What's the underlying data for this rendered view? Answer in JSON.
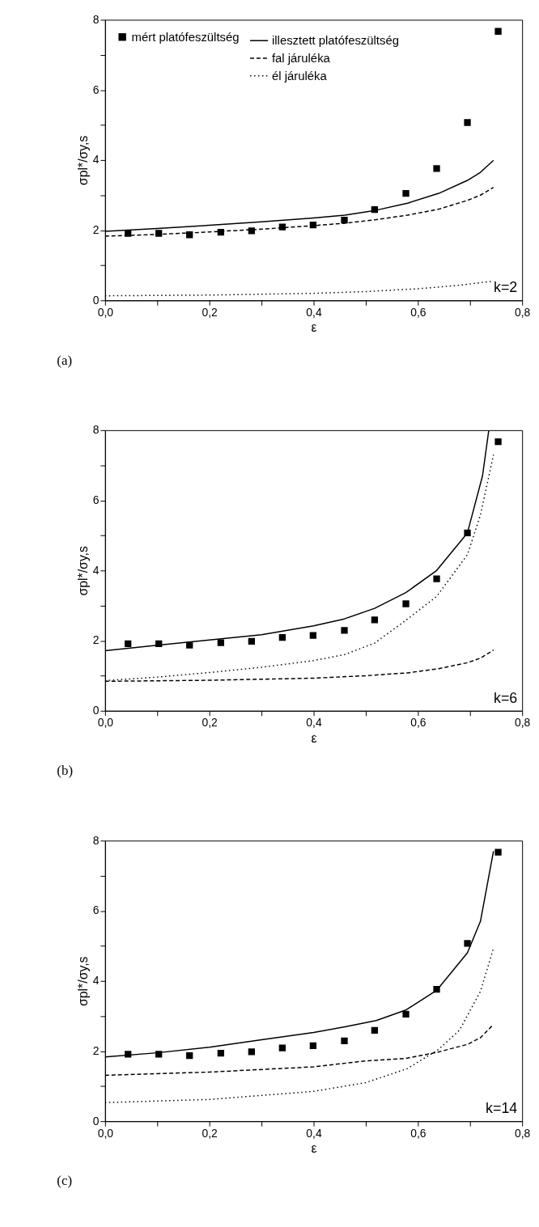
{
  "chart_data": [
    {
      "type": "line",
      "xlabel": "ε",
      "ylabel": "σpl*/σy,s",
      "xlim": [
        0,
        0.8
      ],
      "ylim": [
        0,
        8
      ],
      "legend": "top left",
      "grid": false,
      "xticks": [
        {
          "value": 0,
          "label": "0,0"
        },
        {
          "value": 0.1,
          "label": null
        },
        {
          "value": 0.2,
          "label": "0,2"
        },
        {
          "value": 0.3,
          "label": null
        },
        {
          "value": 0.4,
          "label": "0,4"
        },
        {
          "value": 0.5,
          "label": null
        },
        {
          "value": 0.6,
          "label": "0,6"
        },
        {
          "value": 0.7,
          "label": null
        },
        {
          "value": 0.8,
          "label": "0,8"
        }
      ],
      "yticks": [
        0,
        {
          "value": 1,
          "label": null
        },
        2,
        {
          "value": 3,
          "label": null
        },
        4,
        {
          "value": 5,
          "label": null
        },
        6,
        {
          "value": 7,
          "label": null
        },
        8
      ],
      "annotations": [
        "k=2",
        "(a)"
      ],
      "series": [
        {
          "name": "mért platófeszültség",
          "type": "scatter",
          "marker": "square",
          "color": "#000000",
          "x": [
            0.044,
            0.103,
            0.162,
            0.222,
            0.281,
            0.34,
            0.399,
            0.459,
            0.517,
            0.577,
            0.636,
            0.695,
            0.754
          ],
          "values": [
            1.91,
            1.91,
            1.87,
            1.94,
            1.98,
            2.09,
            2.15,
            2.29,
            2.59,
            3.05,
            3.76,
            5.07,
            7.67
          ]
        },
        {
          "name": "illesztett platófeszültség",
          "type": "line",
          "line_style": "solid",
          "color": "#000000",
          "x": [
            0,
            0.1,
            0.2,
            0.3,
            0.4,
            0.46,
            0.52,
            0.58,
            0.64,
            0.695,
            0.72,
            0.745
          ],
          "values": [
            1.97,
            2.05,
            2.14,
            2.24,
            2.35,
            2.43,
            2.57,
            2.77,
            3.05,
            3.42,
            3.65,
            3.99
          ]
        },
        {
          "name": "fal járuléka",
          "type": "line",
          "line_style": "dashed",
          "color": "#000000",
          "x": [
            0,
            0.1,
            0.2,
            0.3,
            0.4,
            0.46,
            0.52,
            0.58,
            0.64,
            0.695,
            0.72,
            0.745
          ],
          "values": [
            1.83,
            1.88,
            1.95,
            2.03,
            2.13,
            2.2,
            2.3,
            2.43,
            2.6,
            2.85,
            3.0,
            3.22
          ]
        },
        {
          "name": "él járuléka",
          "type": "line",
          "line_style": "dotted",
          "color": "#000000",
          "x": [
            0,
            0.2,
            0.4,
            0.5,
            0.6,
            0.68,
            0.745
          ],
          "values": [
            0.13,
            0.15,
            0.2,
            0.25,
            0.33,
            0.43,
            0.55
          ]
        }
      ]
    },
    {
      "type": "line",
      "xlabel": "ε",
      "ylabel": "σpl*/σy,s",
      "xlim": [
        0,
        0.8
      ],
      "ylim": [
        0,
        8
      ],
      "legend": "top left",
      "grid": false,
      "xticks": [
        {
          "value": 0,
          "label": "0,0"
        },
        {
          "value": 0.1,
          "label": null
        },
        {
          "value": 0.2,
          "label": "0,2"
        },
        {
          "value": 0.3,
          "label": null
        },
        {
          "value": 0.4,
          "label": "0,4"
        },
        {
          "value": 0.5,
          "label": null
        },
        {
          "value": 0.6,
          "label": "0,6"
        },
        {
          "value": 0.7,
          "label": null
        },
        {
          "value": 0.8,
          "label": "0,8"
        }
      ],
      "yticks": [
        0,
        {
          "value": 1,
          "label": null
        },
        2,
        {
          "value": 3,
          "label": null
        },
        4,
        {
          "value": 5,
          "label": null
        },
        6,
        {
          "value": 7,
          "label": null
        },
        8
      ],
      "annotations": [
        "k=6",
        "(b)"
      ],
      "series": [
        {
          "name": "mért platófeszültség",
          "type": "scatter",
          "marker": "square",
          "color": "#000000",
          "x": [
            0.044,
            0.103,
            0.162,
            0.222,
            0.281,
            0.34,
            0.399,
            0.459,
            0.517,
            0.577,
            0.636,
            0.695,
            0.754
          ],
          "values": [
            1.91,
            1.91,
            1.87,
            1.94,
            1.98,
            2.09,
            2.15,
            2.29,
            2.59,
            3.05,
            3.76,
            5.07,
            7.67
          ]
        },
        {
          "name": "illesztett platófeszültség",
          "type": "line",
          "line_style": "solid",
          "color": "#000000",
          "x": [
            0,
            0.1,
            0.2,
            0.3,
            0.4,
            0.459,
            0.517,
            0.577,
            0.636,
            0.695,
            0.724,
            0.736
          ],
          "values": [
            1.71,
            1.87,
            2.02,
            2.17,
            2.42,
            2.62,
            2.92,
            3.37,
            4.0,
            5.07,
            6.7,
            8.0
          ]
        },
        {
          "name": "fal járuléka",
          "type": "line",
          "line_style": "dashed",
          "color": "#000000",
          "x": [
            0,
            0.2,
            0.4,
            0.5,
            0.58,
            0.64,
            0.695,
            0.72,
            0.745
          ],
          "values": [
            0.84,
            0.87,
            0.93,
            1.0,
            1.08,
            1.2,
            1.37,
            1.5,
            1.73
          ]
        },
        {
          "name": "él járuléka",
          "type": "line",
          "line_style": "dotted",
          "color": "#000000",
          "x": [
            0,
            0.1,
            0.2,
            0.3,
            0.4,
            0.459,
            0.517,
            0.577,
            0.636,
            0.695,
            0.72,
            0.745
          ],
          "values": [
            0.86,
            0.96,
            1.09,
            1.24,
            1.43,
            1.6,
            1.93,
            2.58,
            3.26,
            4.45,
            5.58,
            7.3
          ]
        }
      ]
    },
    {
      "type": "line",
      "xlabel": "ε",
      "ylabel": "σpl*/σy,s",
      "xlim": [
        0,
        0.8
      ],
      "ylim": [
        0,
        8
      ],
      "legend": "top left",
      "grid": false,
      "xticks": [
        {
          "value": 0,
          "label": "0,0"
        },
        {
          "value": 0.1,
          "label": null
        },
        {
          "value": 0.2,
          "label": "0,2"
        },
        {
          "value": 0.3,
          "label": null
        },
        {
          "value": 0.4,
          "label": "0,4"
        },
        {
          "value": 0.5,
          "label": null
        },
        {
          "value": 0.6,
          "label": "0,6"
        },
        {
          "value": 0.7,
          "label": null
        },
        {
          "value": 0.8,
          "label": "0,8"
        }
      ],
      "yticks": [
        0,
        {
          "value": 1,
          "label": null
        },
        2,
        {
          "value": 3,
          "label": null
        },
        4,
        {
          "value": 5,
          "label": null
        },
        6,
        {
          "value": 7,
          "label": null
        },
        8
      ],
      "annotations": [
        "k=14",
        "(c)"
      ],
      "series": [
        {
          "name": "mért platófeszültség",
          "type": "scatter",
          "marker": "square",
          "color": "#000000",
          "x": [
            0.044,
            0.103,
            0.162,
            0.222,
            0.281,
            0.34,
            0.399,
            0.459,
            0.517,
            0.577,
            0.636,
            0.695,
            0.754
          ],
          "values": [
            1.91,
            1.91,
            1.87,
            1.94,
            1.98,
            2.09,
            2.15,
            2.29,
            2.59,
            3.05,
            3.76,
            5.07,
            7.67
          ]
        },
        {
          "name": "illesztett platófeszültség",
          "type": "line",
          "line_style": "solid",
          "color": "#000000",
          "x": [
            0,
            0.1,
            0.2,
            0.3,
            0.4,
            0.46,
            0.52,
            0.577,
            0.636,
            0.695,
            0.72,
            0.745
          ],
          "values": [
            1.83,
            1.95,
            2.11,
            2.32,
            2.53,
            2.69,
            2.87,
            3.17,
            3.73,
            4.8,
            5.7,
            7.7
          ]
        },
        {
          "name": "fal járuléka",
          "type": "line",
          "line_style": "dashed",
          "color": "#000000",
          "x": [
            0,
            0.2,
            0.4,
            0.5,
            0.577,
            0.636,
            0.695,
            0.72,
            0.745
          ],
          "values": [
            1.31,
            1.4,
            1.55,
            1.72,
            1.79,
            1.96,
            2.19,
            2.38,
            2.76
          ]
        },
        {
          "name": "él járuléka",
          "type": "line",
          "line_style": "dotted",
          "color": "#000000",
          "x": [
            0,
            0.2,
            0.4,
            0.5,
            0.58,
            0.64,
            0.68,
            0.72,
            0.745
          ],
          "values": [
            0.53,
            0.62,
            0.85,
            1.1,
            1.5,
            2.05,
            2.6,
            3.7,
            4.93
          ]
        }
      ]
    }
  ]
}
